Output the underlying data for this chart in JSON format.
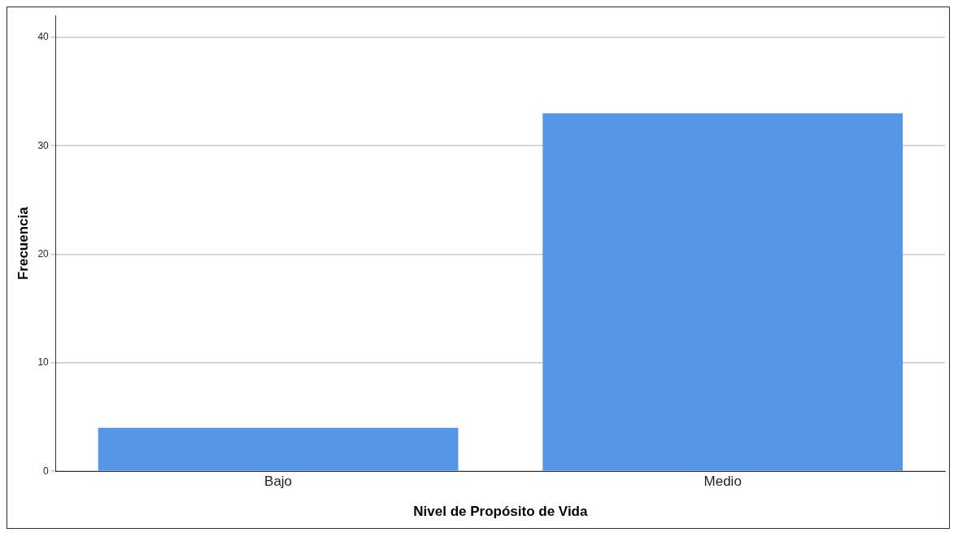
{
  "chart_data": {
    "type": "bar",
    "xlabel": "Nivel de Propósito de Vida",
    "ylabel": "Frecuencia",
    "categories": [
      "Bajo",
      "Medio"
    ],
    "values": [
      4,
      33
    ],
    "color": "#5596e6",
    "ylim": [
      0,
      42
    ],
    "yticks": [
      0,
      10,
      20,
      30,
      40
    ],
    "grid": "y"
  }
}
